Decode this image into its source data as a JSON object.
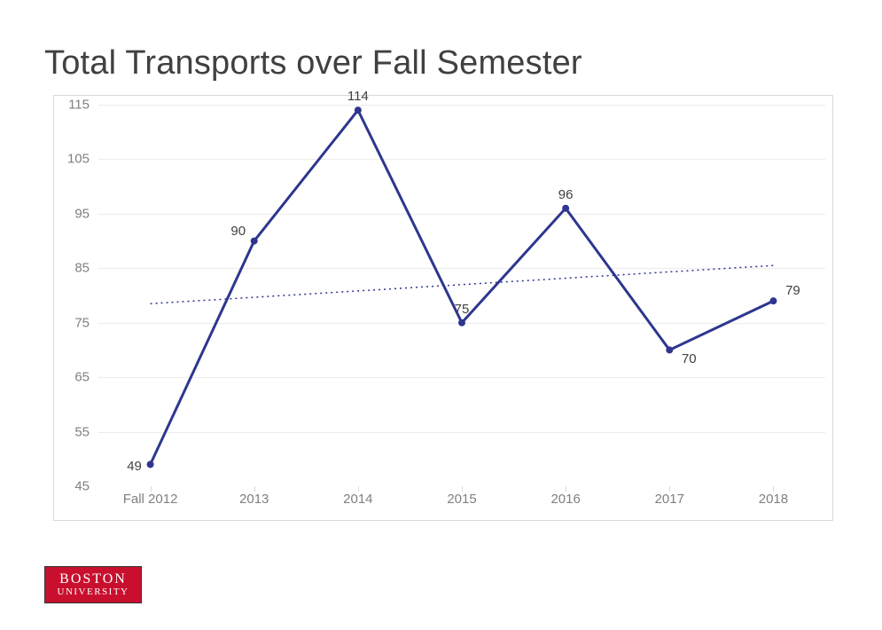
{
  "chart": {
    "type": "line",
    "title": "Total Transports over Fall Semester",
    "title_fontsize": 38,
    "title_color": "#404040",
    "background_color": "#ffffff",
    "plot_border_color": "#d9d9d9",
    "grid_color": "#ececec",
    "axis_label_color": "#808080",
    "axis_label_fontsize": 15,
    "data_label_fontsize": 15,
    "data_label_color": "#404040",
    "categories": [
      "Fall 2012",
      "2013",
      "2014",
      "2015",
      "2016",
      "2017",
      "2018"
    ],
    "values": [
      49,
      90,
      114,
      75,
      96,
      70,
      79
    ],
    "ylim": [
      45,
      115
    ],
    "yticks": [
      45,
      55,
      65,
      75,
      85,
      95,
      105,
      115
    ],
    "line_color": "#2e368f",
    "line_width": 3,
    "marker_color": "#2e368f",
    "marker_size": 4,
    "trendline": {
      "color": "#2e368f",
      "dash": "dotted",
      "width": 1.5,
      "y_start": 78.5,
      "y_end": 85.5
    }
  },
  "logo": {
    "line1": "BOSTON",
    "line2": "UNIVERSITY",
    "bg_color": "#c8102e",
    "text_color": "#ffffff"
  }
}
